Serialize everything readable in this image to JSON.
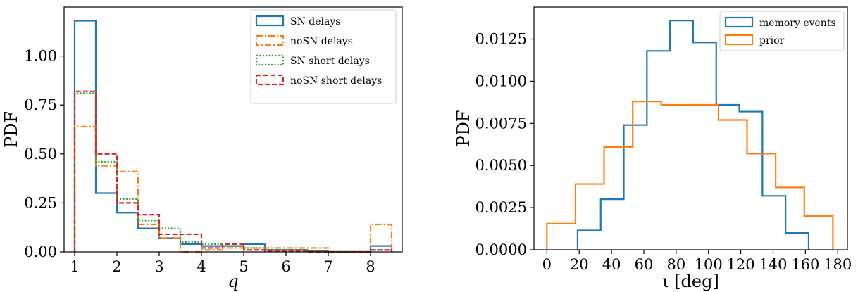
{
  "chart_data": [
    {
      "type": "histogram-step",
      "xlabel": "q",
      "ylabel": "PDF",
      "xlim": [
        0.75,
        8.75
      ],
      "ylim": [
        0,
        1.25
      ],
      "xticks": [
        1,
        2,
        3,
        4,
        5,
        6,
        7,
        8
      ],
      "yticks": [
        0.0,
        0.25,
        0.5,
        0.75,
        1.0
      ],
      "ytick_labels": [
        "0.00",
        "0.25",
        "0.50",
        "0.75",
        "1.00"
      ],
      "bin_edges": [
        1.0,
        1.5,
        2.0,
        2.5,
        3.0,
        3.5,
        4.0,
        4.5,
        5.0,
        5.5,
        6.0,
        6.5,
        7.0,
        7.5,
        8.0,
        8.5
      ],
      "grid": false,
      "legend_position": "top-right",
      "series": [
        {
          "name": "SN delays",
          "color": "#1f77b4",
          "dash": "solid",
          "values": [
            1.18,
            0.3,
            0.2,
            0.12,
            0.07,
            0.04,
            0.03,
            0.03,
            0.04,
            0.01,
            0.01,
            0.005,
            0.0,
            0.0,
            0.03
          ]
        },
        {
          "name": "noSN delays",
          "color": "#ff7f0e",
          "dash": "dashdot",
          "values": [
            0.64,
            0.44,
            0.41,
            0.14,
            0.07,
            0.0,
            0.01,
            0.02,
            0.02,
            0.02,
            0.02,
            0.02,
            0.0,
            0.0,
            0.14
          ]
        },
        {
          "name": "SN short delays",
          "color": "#2ca02c",
          "dash": "dotted",
          "values": [
            0.81,
            0.46,
            0.27,
            0.16,
            0.12,
            0.05,
            0.04,
            0.03,
            0.02,
            0.01,
            0.01,
            0.005,
            0.0,
            0.0,
            0.01
          ]
        },
        {
          "name": "noSN short delays",
          "color": "#d62728",
          "dash": "dashed",
          "values": [
            0.82,
            0.5,
            0.25,
            0.19,
            0.09,
            0.09,
            0.02,
            0.04,
            0.01,
            0.005,
            0.005,
            0.0,
            0.0,
            0.0,
            0.01
          ]
        }
      ]
    },
    {
      "type": "histogram-step",
      "xlabel": "ι [deg]",
      "ylabel": "PDF",
      "xlim": [
        -8,
        186
      ],
      "ylim": [
        0,
        0.0144
      ],
      "xticks": [
        0,
        20,
        40,
        60,
        80,
        100,
        120,
        140,
        160,
        180
      ],
      "yticks": [
        0.0,
        0.0025,
        0.005,
        0.0075,
        0.01,
        0.0125
      ],
      "ytick_labels": [
        "0.0000",
        "0.0025",
        "0.0050",
        "0.0075",
        "0.0100",
        "0.0125"
      ],
      "grid": false,
      "legend_position": "top-right",
      "series": [
        {
          "name": "memory events",
          "color": "#1f77b4",
          "dash": "solid",
          "bin_edges": [
            19.0,
            33.3,
            47.6,
            61.9,
            76.2,
            90.5,
            104.8,
            119.1,
            133.4,
            147.7,
            162.0
          ],
          "values": [
            0.00115,
            0.003,
            0.0074,
            0.0118,
            0.0136,
            0.0123,
            0.0086,
            0.0082,
            0.0032,
            0.001
          ]
        },
        {
          "name": "prior",
          "color": "#ff7f0e",
          "dash": "solid",
          "bin_edges": [
            0.0,
            17.7,
            35.4,
            53.1,
            70.8,
            88.5,
            106.2,
            123.9,
            141.6,
            159.3,
            177.0
          ],
          "values": [
            0.00155,
            0.0039,
            0.0061,
            0.0088,
            0.0086,
            0.0086,
            0.0077,
            0.0057,
            0.0037,
            0.002
          ]
        }
      ]
    }
  ]
}
